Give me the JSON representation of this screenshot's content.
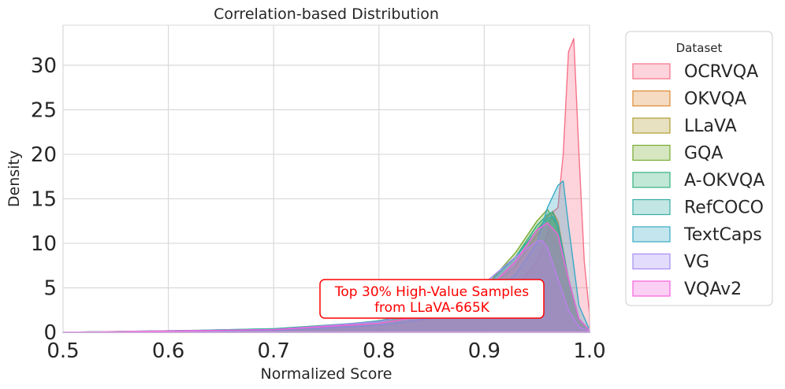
{
  "chart_data": {
    "type": "area",
    "title": "Correlation-based Distribution",
    "xlabel": "Normalized Score",
    "ylabel": "Density",
    "xlim": [
      0.5,
      1.0
    ],
    "ylim": [
      0,
      34.5
    ],
    "xticks": [
      0.5,
      0.6,
      0.7,
      0.8,
      0.9,
      1.0
    ],
    "xtick_labels": [
      "0.5",
      "0.6",
      "0.7",
      "0.8",
      "0.9",
      "1.0"
    ],
    "yticks": [
      0,
      5,
      10,
      15,
      20,
      25,
      30
    ],
    "ytick_labels": [
      "0",
      "5",
      "10",
      "15",
      "20",
      "25",
      "30"
    ],
    "grid": true,
    "legend": {
      "title": "Dataset",
      "placement": "outside-right"
    },
    "annotation": {
      "lines": [
        "Top 30% High-Value Samples",
        "from LLaVA-665K"
      ],
      "color": "#ff0000"
    },
    "series": [
      {
        "name": "OCRVQA",
        "color": "#f77189",
        "x": [
          0.5,
          0.7,
          0.8,
          0.85,
          0.9,
          0.93,
          0.95,
          0.96,
          0.965,
          0.97,
          0.975,
          0.98,
          0.985,
          0.99,
          0.995,
          1.0
        ],
        "y": [
          0,
          0.2,
          0.8,
          1.5,
          3.0,
          5.0,
          8.0,
          11.0,
          13.5,
          14.0,
          20.0,
          31.5,
          33.0,
          20.0,
          8.0,
          2.0
        ]
      },
      {
        "name": "OKVQA",
        "color": "#dc8932",
        "x": [
          0.5,
          0.7,
          0.8,
          0.85,
          0.9,
          0.93,
          0.95,
          0.96,
          0.965,
          0.97,
          0.98,
          0.99,
          1.0
        ],
        "y": [
          0,
          0.3,
          1.0,
          2.0,
          4.5,
          8.0,
          11.5,
          13.0,
          13.6,
          12.5,
          6.0,
          1.5,
          0.2
        ]
      },
      {
        "name": "LLaVA",
        "color": "#ae9d31",
        "x": [
          0.5,
          0.7,
          0.8,
          0.85,
          0.9,
          0.93,
          0.95,
          0.96,
          0.965,
          0.97,
          0.98,
          0.99,
          1.0
        ],
        "y": [
          0,
          0.3,
          1.0,
          2.0,
          4.5,
          7.5,
          11.0,
          12.5,
          12.8,
          11.5,
          6.0,
          1.5,
          0.2
        ]
      },
      {
        "name": "GQA",
        "color": "#77ab31",
        "x": [
          0.5,
          0.7,
          0.8,
          0.85,
          0.9,
          0.93,
          0.95,
          0.96,
          0.97,
          0.98,
          0.99,
          1.0
        ],
        "y": [
          0,
          0.3,
          1.0,
          2.2,
          5.0,
          9.0,
          12.5,
          13.8,
          12.0,
          6.0,
          1.5,
          0.2
        ]
      },
      {
        "name": "A-OKVQA",
        "color": "#33b07a",
        "x": [
          0.5,
          0.62,
          0.7,
          0.8,
          0.85,
          0.9,
          0.93,
          0.95,
          0.96,
          0.965,
          0.97,
          0.98,
          0.99,
          1.0
        ],
        "y": [
          0,
          0.2,
          0.4,
          1.2,
          2.3,
          5.0,
          8.5,
          12.0,
          13.2,
          13.5,
          12.0,
          6.0,
          1.5,
          0.2
        ]
      },
      {
        "name": "RefCOCO",
        "color": "#36ada4",
        "x": [
          0.5,
          0.62,
          0.7,
          0.75,
          0.8,
          0.85,
          0.9,
          0.93,
          0.95,
          0.96,
          0.965,
          0.97,
          0.98,
          0.99,
          1.0
        ],
        "y": [
          0,
          0.2,
          0.4,
          0.7,
          1.3,
          2.5,
          5.0,
          8.5,
          11.5,
          12.8,
          13.0,
          12.0,
          6.0,
          1.5,
          0.2
        ]
      },
      {
        "name": "TextCaps",
        "color": "#38a9c5",
        "x": [
          0.5,
          0.7,
          0.8,
          0.85,
          0.9,
          0.93,
          0.95,
          0.96,
          0.97,
          0.975,
          0.98,
          0.99,
          1.0
        ],
        "y": [
          0,
          0.2,
          0.8,
          1.6,
          3.5,
          6.5,
          10.0,
          14.0,
          16.5,
          17.0,
          12.0,
          3.0,
          0.3
        ]
      },
      {
        "name": "VG",
        "color": "#a48cf4",
        "x": [
          0.5,
          0.7,
          0.8,
          0.85,
          0.9,
          0.93,
          0.95,
          0.955,
          0.96,
          0.97,
          0.98,
          0.99,
          1.0
        ],
        "y": [
          0,
          0.3,
          1.2,
          2.5,
          5.5,
          8.5,
          10.2,
          10.3,
          9.5,
          6.0,
          2.5,
          0.6,
          0.1
        ]
      },
      {
        "name": "VQAv2",
        "color": "#f561dd",
        "x": [
          0.5,
          0.7,
          0.8,
          0.85,
          0.9,
          0.93,
          0.95,
          0.96,
          0.97,
          0.98,
          0.99,
          1.0
        ],
        "y": [
          0,
          0.3,
          1.0,
          2.0,
          4.5,
          8.0,
          11.5,
          12.3,
          11.0,
          6.0,
          1.5,
          0.2
        ]
      }
    ]
  }
}
